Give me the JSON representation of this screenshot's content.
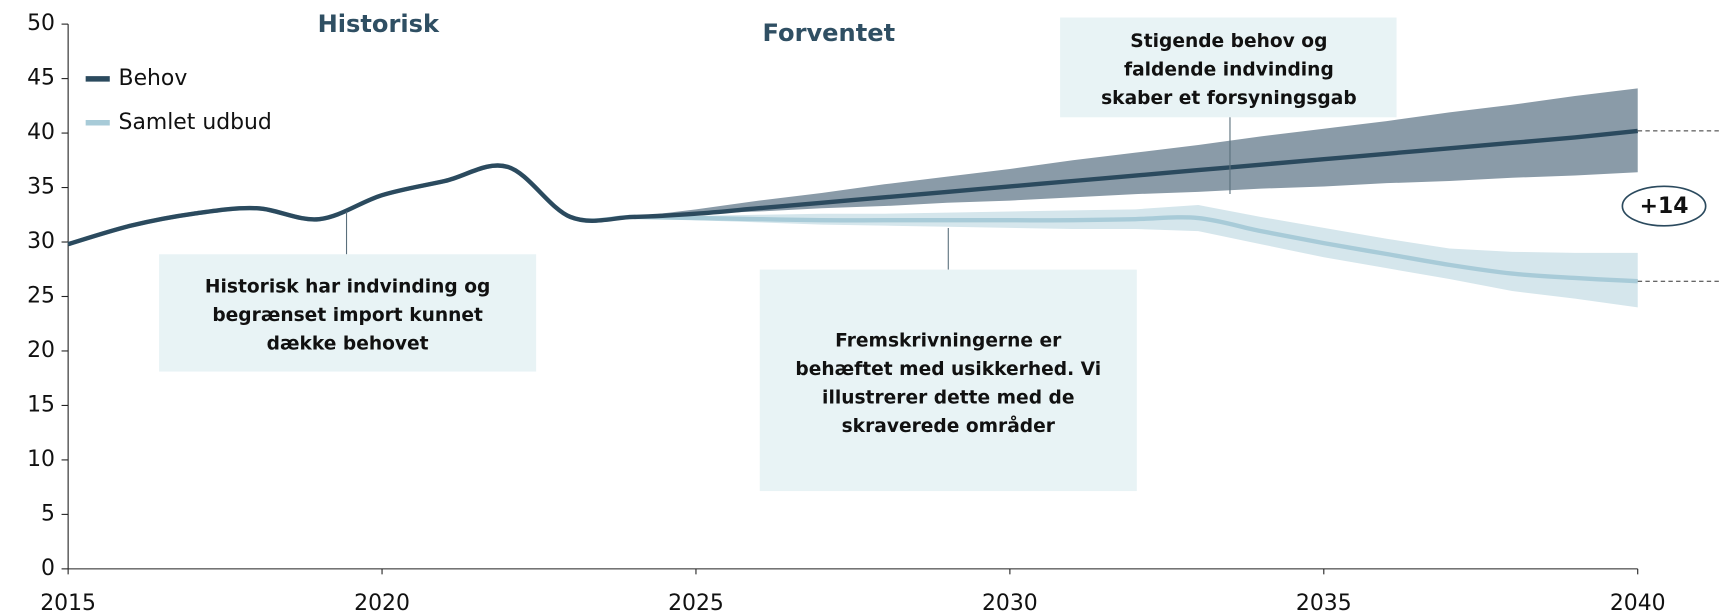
{
  "chart_data": {
    "type": "line",
    "x": [
      2015,
      2016,
      2017,
      2018,
      2019,
      2020,
      2021,
      2022,
      2023,
      2024,
      2025,
      2026,
      2027,
      2028,
      2029,
      2030,
      2031,
      2032,
      2033,
      2034,
      2035,
      2036,
      2037,
      2038,
      2039,
      2040
    ],
    "series": [
      {
        "name": "Behov",
        "color": "#2b4a5e",
        "band_color": "#8a9ba8",
        "values": [
          29.8,
          31.5,
          32.6,
          33.1,
          32.1,
          34.3,
          35.6,
          36.9,
          32.3,
          32.3,
          32.6,
          33.1,
          33.6,
          34.1,
          34.6,
          35.1,
          35.6,
          36.1,
          36.6,
          37.1,
          37.6,
          38.1,
          38.6,
          39.1,
          39.6,
          40.2
        ],
        "band_low": [
          null,
          null,
          null,
          null,
          null,
          null,
          null,
          null,
          null,
          32.3,
          32.6,
          32.8,
          33.1,
          33.3,
          33.6,
          33.8,
          34.1,
          34.4,
          34.6,
          34.9,
          35.1,
          35.4,
          35.6,
          35.9,
          36.1,
          36.4
        ],
        "band_high": [
          null,
          null,
          null,
          null,
          null,
          null,
          null,
          null,
          null,
          32.3,
          33.0,
          33.8,
          34.5,
          35.3,
          36.0,
          36.7,
          37.5,
          38.2,
          38.9,
          39.7,
          40.4,
          41.1,
          41.9,
          42.6,
          43.4,
          44.1
        ]
      },
      {
        "name": "Samlet udbud",
        "color": "#a8cbd8",
        "band_color": "#d5e6ec",
        "values": [
          29.8,
          31.5,
          32.6,
          33.1,
          32.1,
          34.3,
          35.6,
          36.9,
          32.3,
          32.3,
          32.2,
          32.1,
          32.0,
          32.0,
          32.0,
          32.0,
          32.0,
          32.1,
          32.2,
          31.0,
          29.9,
          28.9,
          27.9,
          27.1,
          26.7,
          26.4
        ],
        "band_low": [
          null,
          null,
          null,
          null,
          null,
          null,
          null,
          null,
          null,
          32.3,
          32.0,
          31.8,
          31.6,
          31.5,
          31.4,
          31.3,
          31.2,
          31.2,
          31.0,
          29.8,
          28.6,
          27.6,
          26.6,
          25.5,
          24.8,
          24.0
        ],
        "band_high": [
          null,
          null,
          null,
          null,
          null,
          null,
          null,
          null,
          null,
          32.3,
          32.4,
          32.5,
          32.6,
          32.6,
          32.7,
          32.8,
          32.9,
          33.0,
          33.4,
          32.3,
          31.3,
          30.3,
          29.4,
          29.1,
          29.0,
          29.0
        ]
      }
    ],
    "xlim": [
      2015,
      2040
    ],
    "xticks": [
      2015,
      2020,
      2025,
      2030,
      2035,
      2040
    ],
    "ylim": [
      0,
      50
    ],
    "yticks": [
      0,
      5,
      10,
      15,
      20,
      25,
      30,
      35,
      40,
      45,
      50
    ],
    "legend": "upper left",
    "sections": [
      "Historisk",
      "Forventet"
    ],
    "gap_label": "+14",
    "annotations": [
      {
        "lines": [
          "Historisk har indvinding og",
          "begrænset import kunnet",
          "dække behovet"
        ]
      },
      {
        "lines": [
          "Fremskrivningerne er",
          "behæftet med usikkerhed. Vi",
          "illustrerer dette med de",
          "skraverede områder"
        ]
      },
      {
        "lines": [
          "Stigende behov og",
          "faldende indvinding",
          "skaber et forsyningsgab"
        ]
      }
    ]
  }
}
